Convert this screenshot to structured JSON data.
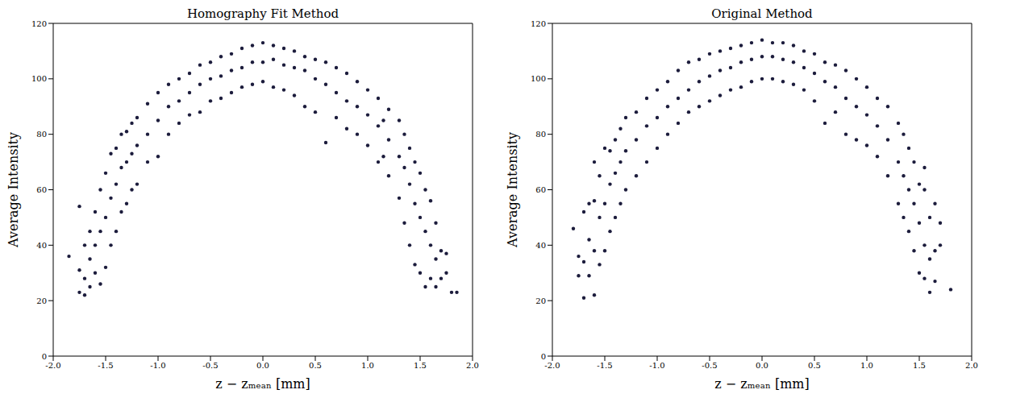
{
  "chart_data": [
    {
      "type": "scatter",
      "title": "Homography Fit Method",
      "x_label": "z − zₘₑₐₙ [mm]",
      "y_label": "Average Intensity",
      "color": "#1c1c3c",
      "marker": "circle",
      "grid": false,
      "xlim": [
        -2,
        2
      ],
      "ylim": [
        0,
        120
      ],
      "xticks": [
        {
          "value": -2,
          "label": "-2.0"
        },
        -1.5,
        {
          "value": -1,
          "label": "-1.0"
        },
        -0.5,
        {
          "value": 0,
          "label": "0.0"
        },
        0.5,
        {
          "value": 1,
          "label": "1.0"
        },
        1.5,
        {
          "value": 2,
          "label": "2.0"
        }
      ],
      "yticks": [
        0,
        20,
        40,
        60,
        80,
        100,
        120
      ],
      "x": [
        -1.85,
        -1.75,
        -1.75,
        -1.75,
        -1.7,
        -1.7,
        -1.7,
        -1.65,
        -1.65,
        -1.65,
        -1.6,
        -1.6,
        -1.6,
        -1.55,
        -1.55,
        -1.55,
        -1.5,
        -1.5,
        -1.5,
        -1.45,
        -1.45,
        -1.45,
        -1.4,
        -1.4,
        -1.4,
        -1.35,
        -1.35,
        -1.35,
        -1.3,
        -1.3,
        -1.3,
        -1.25,
        -1.25,
        -1.25,
        -1.2,
        -1.2,
        -1.2,
        -1.1,
        -1.1,
        -1.1,
        -1.0,
        -1.0,
        -1.0,
        -0.9,
        -0.9,
        -0.9,
        -0.8,
        -0.8,
        -0.8,
        -0.7,
        -0.7,
        -0.7,
        -0.6,
        -0.6,
        -0.6,
        -0.5,
        -0.5,
        -0.5,
        -0.4,
        -0.4,
        -0.4,
        -0.3,
        -0.3,
        -0.3,
        -0.2,
        -0.2,
        -0.2,
        -0.1,
        -0.1,
        -0.1,
        0.0,
        0.0,
        0.0,
        0.1,
        0.1,
        0.1,
        0.2,
        0.2,
        0.2,
        0.3,
        0.3,
        0.3,
        0.4,
        0.4,
        0.4,
        0.5,
        0.5,
        0.5,
        0.6,
        0.6,
        0.6,
        0.7,
        0.7,
        0.7,
        0.8,
        0.8,
        0.8,
        0.9,
        0.9,
        0.9,
        1.0,
        1.0,
        1.0,
        1.1,
        1.1,
        1.1,
        1.15,
        1.15,
        1.2,
        1.2,
        1.2,
        1.3,
        1.3,
        1.3,
        1.35,
        1.35,
        1.35,
        1.4,
        1.4,
        1.4,
        1.45,
        1.45,
        1.45,
        1.5,
        1.5,
        1.5,
        1.55,
        1.55,
        1.55,
        1.6,
        1.6,
        1.6,
        1.65,
        1.65,
        1.65,
        1.7,
        1.7,
        1.75,
        1.75,
        1.8,
        1.85
      ],
      "values": [
        36,
        23,
        31,
        54,
        22,
        28,
        40,
        25,
        35,
        45,
        30,
        40,
        52,
        26,
        45,
        60,
        32,
        50,
        66,
        40,
        57,
        73,
        45,
        62,
        75,
        52,
        68,
        80,
        55,
        70,
        81,
        60,
        73,
        84,
        62,
        76,
        86,
        70,
        80,
        91,
        72,
        85,
        95,
        80,
        90,
        98,
        84,
        92,
        100,
        87,
        95,
        102,
        88,
        98,
        105,
        92,
        100,
        106,
        93,
        101,
        108,
        95,
        103,
        109,
        97,
        104,
        111,
        98,
        106,
        112,
        99,
        106,
        113,
        97,
        107,
        112,
        96,
        105,
        111,
        94,
        104,
        110,
        90,
        103,
        108,
        88,
        100,
        107,
        77,
        98,
        106,
        86,
        95,
        104,
        82,
        92,
        102,
        80,
        90,
        99,
        76,
        87,
        96,
        70,
        83,
        93,
        72,
        85,
        65,
        78,
        89,
        57,
        72,
        85,
        48,
        68,
        80,
        40,
        62,
        75,
        33,
        55,
        70,
        30,
        50,
        66,
        25,
        45,
        60,
        28,
        40,
        56,
        25,
        35,
        48,
        28,
        38,
        30,
        37,
        23,
        23
      ]
    },
    {
      "type": "scatter",
      "title": "Original Method",
      "x_label": "z − zₘₑₐₙ [mm]",
      "y_label": "Average Intensity",
      "color": "#1c1c3c",
      "marker": "circle",
      "grid": false,
      "xlim": [
        -2,
        2
      ],
      "ylim": [
        0,
        120
      ],
      "xticks": [
        {
          "value": -2,
          "label": "-2.0"
        },
        -1.5,
        {
          "value": -1,
          "label": "-1.0"
        },
        -0.5,
        {
          "value": 0,
          "label": "0.0"
        },
        0.5,
        {
          "value": 1,
          "label": "1.0"
        },
        1.5,
        {
          "value": 2,
          "label": "2.0"
        }
      ],
      "yticks": [
        0,
        20,
        40,
        60,
        80,
        100,
        120
      ],
      "x": [
        -1.8,
        -1.75,
        -1.75,
        -1.7,
        -1.7,
        -1.7,
        -1.65,
        -1.65,
        -1.65,
        -1.6,
        -1.6,
        -1.6,
        -1.6,
        -1.55,
        -1.55,
        -1.55,
        -1.5,
        -1.5,
        -1.5,
        -1.45,
        -1.45,
        -1.45,
        -1.4,
        -1.4,
        -1.4,
        -1.35,
        -1.35,
        -1.35,
        -1.3,
        -1.3,
        -1.3,
        -1.2,
        -1.2,
        -1.2,
        -1.1,
        -1.1,
        -1.1,
        -1.0,
        -1.0,
        -1.0,
        -0.9,
        -0.9,
        -0.9,
        -0.8,
        -0.8,
        -0.8,
        -0.7,
        -0.7,
        -0.7,
        -0.6,
        -0.6,
        -0.6,
        -0.5,
        -0.5,
        -0.5,
        -0.4,
        -0.4,
        -0.4,
        -0.3,
        -0.3,
        -0.3,
        -0.2,
        -0.2,
        -0.2,
        -0.1,
        -0.1,
        -0.1,
        0.0,
        0.0,
        0.0,
        0.1,
        0.1,
        0.1,
        0.2,
        0.2,
        0.2,
        0.3,
        0.3,
        0.3,
        0.4,
        0.4,
        0.4,
        0.5,
        0.5,
        0.5,
        0.6,
        0.6,
        0.6,
        0.7,
        0.7,
        0.7,
        0.8,
        0.8,
        0.8,
        0.9,
        0.9,
        0.9,
        1.0,
        1.0,
        1.0,
        1.1,
        1.1,
        1.1,
        1.2,
        1.2,
        1.2,
        1.3,
        1.3,
        1.3,
        1.35,
        1.35,
        1.35,
        1.4,
        1.4,
        1.4,
        1.45,
        1.45,
        1.45,
        1.5,
        1.5,
        1.5,
        1.55,
        1.55,
        1.55,
        1.55,
        1.6,
        1.6,
        1.6,
        1.65,
        1.65,
        1.65,
        1.7,
        1.7,
        1.8
      ],
      "values": [
        46,
        29,
        36,
        21,
        34,
        52,
        29,
        42,
        55,
        22,
        38,
        56,
        70,
        33,
        50,
        65,
        38,
        55,
        75,
        45,
        62,
        74,
        50,
        66,
        78,
        55,
        70,
        82,
        60,
        74,
        86,
        65,
        78,
        88,
        70,
        83,
        93,
        75,
        86,
        96,
        80,
        90,
        99,
        84,
        93,
        103,
        88,
        96,
        106,
        90,
        99,
        107,
        92,
        101,
        109,
        94,
        103,
        110,
        96,
        104,
        111,
        97,
        106,
        112,
        99,
        107,
        113,
        100,
        108,
        114,
        100,
        108,
        113,
        99,
        107,
        113,
        98,
        106,
        112,
        96,
        104,
        110,
        92,
        102,
        109,
        84,
        99,
        106,
        88,
        97,
        105,
        80,
        93,
        103,
        78,
        90,
        100,
        76,
        87,
        97,
        72,
        83,
        93,
        65,
        78,
        90,
        55,
        70,
        84,
        50,
        65,
        80,
        45,
        60,
        75,
        38,
        55,
        70,
        30,
        48,
        62,
        28,
        40,
        60,
        68,
        23,
        35,
        50,
        27,
        38,
        55,
        40,
        48,
        24
      ]
    }
  ]
}
